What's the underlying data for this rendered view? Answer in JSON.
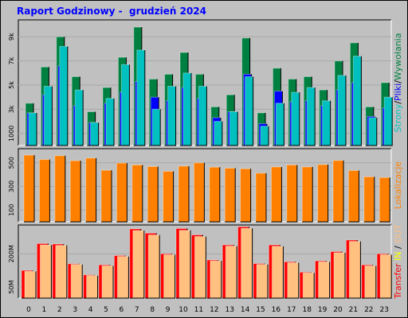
{
  "title": "Raport Godzinowy -  grudzień 2024",
  "chart_data": [
    {
      "type": "bar",
      "panel": "pages-files-hits",
      "label_parts": [
        {
          "text": "Strony",
          "color": "#00c0c0"
        },
        {
          "text": "/",
          "color": "#000000"
        },
        {
          "text": "Pliki",
          "color": "#0000ff"
        },
        {
          "text": "/",
          "color": "#000000"
        },
        {
          "text": "Wywołania",
          "color": "#008040"
        }
      ],
      "y_ticks": [
        "1000",
        "3k",
        "5k",
        "7k",
        "9k"
      ],
      "ylim": [
        0,
        10400
      ],
      "categories": [
        0,
        1,
        2,
        3,
        4,
        5,
        6,
        7,
        8,
        9,
        10,
        11,
        12,
        13,
        14,
        15,
        16,
        17,
        18,
        19,
        20,
        21,
        22,
        23
      ],
      "series": [
        {
          "name": "Wywołania",
          "color": "#008040",
          "values": [
            3500,
            6500,
            9000,
            5700,
            2800,
            4800,
            7300,
            9800,
            5500,
            5900,
            7700,
            5900,
            3200,
            4200,
            8900,
            2700,
            6400,
            5500,
            5700,
            4600,
            7000,
            8500,
            3200,
            5200
          ]
        },
        {
          "name": "Pliki",
          "color": "#0000ff",
          "values": [
            2700,
            4200,
            6600,
            3300,
            1900,
            3500,
            4400,
            5300,
            4000,
            3700,
            4800,
            3900,
            2300,
            2800,
            5900,
            1800,
            4500,
            3600,
            3700,
            3300,
            4600,
            5200,
            2400,
            3100
          ]
        },
        {
          "name": "Strony",
          "color": "#00c0c0",
          "values": [
            2700,
            4900,
            8200,
            4600,
            1900,
            3900,
            6700,
            7900,
            3000,
            4900,
            6000,
            4900,
            2000,
            2800,
            5700,
            1600,
            3500,
            4400,
            4800,
            3700,
            5800,
            7400,
            2300,
            4000
          ]
        }
      ]
    },
    {
      "type": "bar",
      "panel": "sites",
      "label_parts": [
        {
          "text": "Lokalizacje",
          "color": "#ff8000"
        }
      ],
      "y_ticks": [
        "100",
        "300",
        "500"
      ],
      "ylim": [
        0,
        620
      ],
      "categories": [
        0,
        1,
        2,
        3,
        4,
        5,
        6,
        7,
        8,
        9,
        10,
        11,
        12,
        13,
        14,
        15,
        16,
        17,
        18,
        19,
        20,
        21,
        22,
        23
      ],
      "series": [
        {
          "name": "Lokalizacje",
          "color": "#ff8000",
          "values": [
            565,
            528,
            560,
            518,
            540,
            437,
            498,
            482,
            468,
            428,
            472,
            500,
            463,
            455,
            450,
            413,
            465,
            482,
            465,
            485,
            520,
            435,
            382,
            376
          ]
        }
      ]
    },
    {
      "type": "bar",
      "panel": "transfer",
      "label_parts": [
        {
          "text": "Transfer",
          "color": "#ff0000"
        },
        {
          "text": " IN ",
          "color": "#ffff00"
        },
        {
          "text": "/",
          "color": "#000000"
        },
        {
          "text": " OUT",
          "color": "#ffc080"
        }
      ],
      "y_ticks": [
        "50M",
        "200M"
      ],
      "ylim": [
        0,
        330
      ],
      "categories": [
        0,
        1,
        2,
        3,
        4,
        5,
        6,
        7,
        8,
        9,
        10,
        11,
        12,
        13,
        14,
        15,
        16,
        17,
        18,
        19,
        20,
        21,
        22,
        23
      ],
      "series": [
        {
          "name": "Transfer",
          "color": "#ff0000",
          "values": [
            125,
            246,
            244,
            155,
            105,
            150,
            192,
            312,
            293,
            200,
            314,
            285,
            172,
            240,
            322,
            156,
            240,
            164,
            117,
            168,
            210,
            262,
            150,
            200
          ]
        },
        {
          "name": "OUT",
          "color": "#ffc080",
          "values": [
            121,
            240,
            238,
            152,
            102,
            146,
            188,
            305,
            285,
            196,
            306,
            278,
            168,
            235,
            315,
            152,
            234,
            160,
            114,
            164,
            205,
            256,
            146,
            196
          ]
        }
      ]
    }
  ]
}
